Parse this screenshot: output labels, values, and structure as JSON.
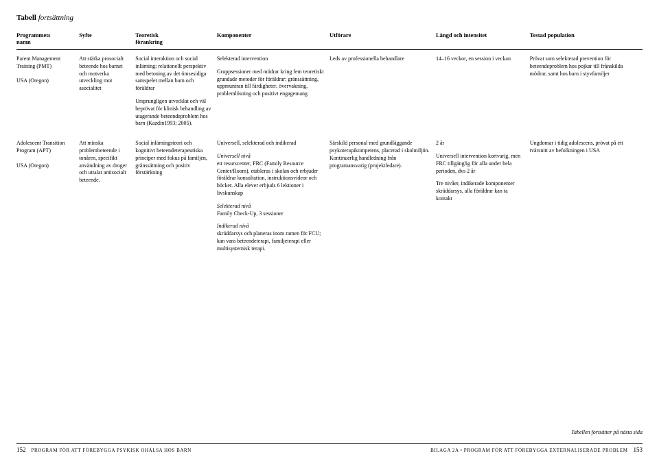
{
  "title": {
    "bold": "Tabell",
    "italic": "fortsättning"
  },
  "headers": {
    "name": "Programmets\nnamn",
    "syfte": "Syfte",
    "teor": "Teoretisk\nförankring",
    "komp": "Komponenter",
    "utf": "Utförare",
    "langd": "Längd och intensitet",
    "pop": "Testad population"
  },
  "rows": [
    {
      "name": "Parent Management Training (PMT)\n\nUSA (Oregon)",
      "syfte": "Att stärka prosocialt beteende hos barnet och motverka utveckling mot asocialitet",
      "teor_p1": "Social interaktion och social inlärning; relationellt perspektiv med betoning av det ömsesidiga samspelet mellan barn och föräldrar",
      "teor_p2": "Ursprungligen utvecklat och väl beprövat för klinisk behandling av utagerande beteendeproblem hos barn (Kazdin1993; 2005).",
      "komp_p1": "Selekterad intervention",
      "komp_p2": "Gruppsessioner med mödrar kring fem teoretiskt grundade metoder för föräldrar: gränssättning, uppmuntran till färdigheter, övervakning, problemlösning och positivt engagemang",
      "utf": "Leds av professionella behandlare",
      "langd": "14–16 veckor, en session i veckan",
      "pop": "Prövat som selekterad prevention för beteendeproblem hos pojkar till frånskilda mödrar, samt hos barn i styvfamiljer"
    },
    {
      "name": "Adolescent Transition Program (APT)\n\nUSA (Oregon)",
      "syfte": "Att minska problembeteende i tonåren, specifikt användning av droger och uttalat antisocialt beteende.",
      "teor": "Social inlärningsteori och kognitivt beteendeterapeutiska principer med fokus på familjen, gränssättning och positiv förstärkning",
      "komp_p1": "Universell, selekterad och indikerad",
      "komp_h2": "Universell nivå",
      "komp_p2": "ett resurscenter, FRC (Family Resource Center/Room), etableras i skolan och erbjuder föräldrar konsultation, instruktionsvideor och böcker. Alla elever erbjuds 6 lektioner i livskunskap",
      "komp_h3": "Selekterad nivå",
      "komp_p3": "Family Check-Up, 3 sessioner",
      "komp_h4": "Indikerad nivå",
      "komp_p4": "skräddarsys och planeras inom ramen för FCU; kan vara beteendeterapi, familjeterapi eller multisystemisk terapi.",
      "utf": "Särskild personal med grundläggande psykoterapikompetens, placerad i skolmiljön. Kontinuerlig handledning från programansvarig (projektledare).",
      "langd_p1": "2 år",
      "langd_p2": "Universell intervention kortvarig, men FRC tillgänglig för alla under hela perioden, dvs 2 år",
      "langd_p3": "Tre nivåer, indikerade komponenter skräddarsys, alla föräldrar kan ta kontakt",
      "pop": "Ungdomar i tidig adolescens, prövat på ett tvärsnitt av befolkningen i USA"
    }
  ],
  "continue_note": "Tabellen fortsätter på nästa sida",
  "footer": {
    "left_page": "152",
    "left_text": "Program för att förebygga psykisk ohälsa hos barn",
    "right_text": "Bilaga 2A • Program för att förebygga externaliserade problem",
    "right_page": "153"
  }
}
